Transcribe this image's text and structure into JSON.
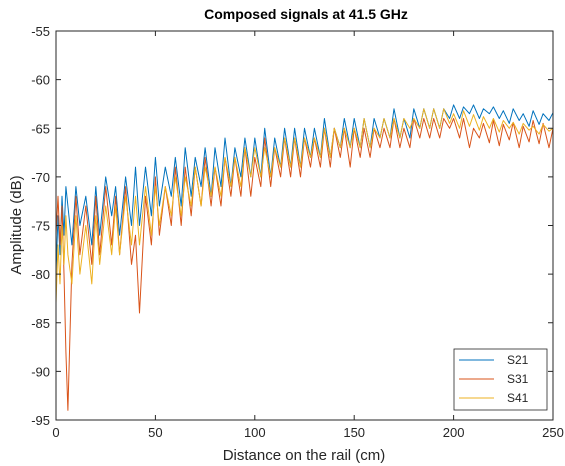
{
  "chart_data": {
    "type": "line",
    "title": "Composed signals at 41.5 GHz",
    "xlabel": "Distance on the rail (cm)",
    "ylabel": "Amplitude (dB)",
    "xlim": [
      0,
      250
    ],
    "ylim": [
      -95,
      -55
    ],
    "xticks": [
      0,
      50,
      100,
      150,
      200,
      250
    ],
    "yticks": [
      -95,
      -90,
      -85,
      -80,
      -75,
      -70,
      -65,
      -60,
      -55
    ],
    "grid": false,
    "legend_position": "bottom-right",
    "series": [
      {
        "name": "S21",
        "color": "#0072BD",
        "x": [
          0,
          1,
          2,
          3,
          4,
          5,
          6,
          8,
          10,
          12,
          15,
          18,
          20,
          22,
          25,
          28,
          30,
          32,
          35,
          38,
          40,
          42,
          45,
          48,
          50,
          52,
          55,
          58,
          60,
          63,
          65,
          68,
          70,
          73,
          75,
          78,
          80,
          83,
          85,
          88,
          90,
          93,
          95,
          98,
          100,
          103,
          105,
          108,
          110,
          113,
          115,
          118,
          120,
          123,
          125,
          128,
          130,
          133,
          135,
          138,
          140,
          143,
          145,
          148,
          150,
          153,
          155,
          158,
          160,
          163,
          165,
          168,
          170,
          173,
          175,
          178,
          180,
          183,
          185,
          188,
          190,
          193,
          195,
          198,
          200,
          203,
          205,
          208,
          210,
          213,
          215,
          218,
          220,
          223,
          225,
          228,
          230,
          233,
          235,
          238,
          240,
          243,
          245,
          248,
          250
        ],
        "values": [
          -80,
          -74,
          -78,
          -72,
          -76,
          -71,
          -73,
          -77,
          -71,
          -75,
          -72,
          -77,
          -71,
          -76,
          -70,
          -74,
          -71,
          -76,
          -70,
          -75,
          -69,
          -75,
          -69,
          -74,
          -68,
          -73,
          -69,
          -72,
          -68,
          -73,
          -67,
          -72,
          -68,
          -71,
          -67,
          -72,
          -67,
          -71,
          -66,
          -71,
          -67,
          -70,
          -66,
          -70,
          -66,
          -70,
          -65,
          -70,
          -66,
          -69,
          -65,
          -69,
          -65,
          -69,
          -65,
          -68,
          -65,
          -68,
          -64,
          -68,
          -65,
          -67,
          -64,
          -67,
          -64,
          -67,
          -64,
          -67,
          -64,
          -66,
          -64,
          -66,
          -63,
          -66,
          -64,
          -66,
          -63,
          -65,
          -63,
          -65,
          -63,
          -65,
          -63,
          -64,
          -62.6,
          -64,
          -62.8,
          -63.5,
          -62.6,
          -64,
          -63,
          -63.5,
          -62.8,
          -64,
          -63.2,
          -64.5,
          -63,
          -64.2,
          -63.5,
          -64.8,
          -63.2,
          -64.6,
          -63.5,
          -64.2,
          -63.4
        ]
      },
      {
        "name": "S31",
        "color": "#D95319",
        "x": [
          0,
          1,
          2,
          3,
          4,
          5,
          6,
          8,
          10,
          12,
          15,
          18,
          20,
          22,
          25,
          28,
          30,
          32,
          35,
          38,
          40,
          42,
          45,
          48,
          50,
          52,
          55,
          58,
          60,
          63,
          65,
          68,
          70,
          73,
          75,
          78,
          80,
          83,
          85,
          88,
          90,
          93,
          95,
          98,
          100,
          103,
          105,
          108,
          110,
          113,
          115,
          118,
          120,
          123,
          125,
          128,
          130,
          133,
          135,
          138,
          140,
          143,
          145,
          148,
          150,
          153,
          155,
          158,
          160,
          163,
          165,
          168,
          170,
          173,
          175,
          178,
          180,
          183,
          185,
          188,
          190,
          193,
          195,
          198,
          200,
          203,
          205,
          208,
          210,
          213,
          215,
          218,
          220,
          223,
          225,
          228,
          230,
          233,
          235,
          238,
          240,
          243,
          245,
          248,
          250
        ],
        "values": [
          -76,
          -72,
          -77,
          -73,
          -80,
          -88,
          -94,
          -79,
          -72,
          -78,
          -73,
          -79,
          -72,
          -78,
          -71,
          -77,
          -72,
          -78,
          -71,
          -79,
          -76,
          -84,
          -72,
          -77,
          -70,
          -76,
          -71,
          -75,
          -69,
          -75,
          -69,
          -74,
          -69,
          -73,
          -68,
          -73,
          -69,
          -73,
          -68,
          -72,
          -68,
          -72,
          -67,
          -72,
          -68,
          -71,
          -66,
          -71,
          -67,
          -70,
          -66,
          -70,
          -66,
          -70,
          -66,
          -69,
          -66,
          -69,
          -65,
          -69,
          -65,
          -68,
          -65,
          -69,
          -65,
          -68,
          -65,
          -68,
          -65,
          -67,
          -65,
          -67,
          -64,
          -67,
          -65,
          -67,
          -64,
          -66,
          -64,
          -66,
          -64,
          -66,
          -64,
          -65,
          -64,
          -66,
          -64,
          -67,
          -65,
          -66,
          -64.5,
          -66.5,
          -64.2,
          -66.8,
          -64.6,
          -66.2,
          -64.4,
          -67,
          -64.8,
          -66.4,
          -64.2,
          -66.6,
          -64.5,
          -67,
          -65
        ]
      },
      {
        "name": "S41",
        "color": "#EDB120",
        "x": [
          0,
          1,
          2,
          3,
          4,
          5,
          6,
          8,
          10,
          12,
          15,
          18,
          20,
          22,
          25,
          28,
          30,
          32,
          35,
          38,
          40,
          42,
          45,
          48,
          50,
          52,
          55,
          58,
          60,
          63,
          65,
          68,
          70,
          73,
          75,
          78,
          80,
          83,
          85,
          88,
          90,
          93,
          95,
          98,
          100,
          103,
          105,
          108,
          110,
          113,
          115,
          118,
          120,
          123,
          125,
          128,
          130,
          133,
          135,
          138,
          140,
          143,
          145,
          148,
          150,
          153,
          155,
          158,
          160,
          163,
          165,
          168,
          170,
          173,
          175,
          178,
          180,
          183,
          185,
          188,
          190,
          193,
          195,
          198,
          200,
          203,
          205,
          208,
          210,
          213,
          215,
          218,
          220,
          223,
          225,
          228,
          230,
          233,
          235,
          238,
          240,
          243,
          245,
          248,
          250
        ],
        "values": [
          -83,
          -77,
          -81,
          -75,
          -79,
          -74,
          -78,
          -81,
          -74,
          -80,
          -75,
          -81,
          -74,
          -79,
          -73,
          -78,
          -73,
          -78,
          -72,
          -77,
          -72,
          -77,
          -71,
          -76,
          -71,
          -75,
          -71,
          -74,
          -70,
          -74,
          -70,
          -73,
          -69,
          -73,
          -69,
          -72,
          -69,
          -72,
          -68,
          -71,
          -68,
          -71,
          -67,
          -70,
          -67,
          -70,
          -67,
          -70,
          -67,
          -69,
          -66,
          -69,
          -66,
          -69,
          -66,
          -68,
          -66,
          -68,
          -65,
          -68,
          -65,
          -67,
          -65,
          -67,
          -65,
          -67,
          -64,
          -67,
          -65,
          -66,
          -64,
          -66,
          -64,
          -66,
          -64,
          -65,
          -64,
          -65,
          -63,
          -65,
          -63,
          -65,
          -63,
          -64.5,
          -63.5,
          -65,
          -63.2,
          -64.8,
          -63.6,
          -65.2,
          -63.8,
          -65,
          -64,
          -65.4,
          -64.2,
          -65,
          -64.4,
          -65.6,
          -64.5,
          -65.2,
          -64.8,
          -65.6,
          -64.6,
          -65.3,
          -65
        ]
      }
    ]
  }
}
